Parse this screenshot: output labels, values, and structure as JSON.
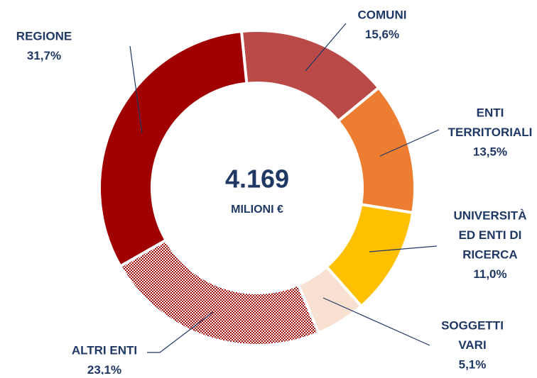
{
  "chart_data": {
    "type": "donut",
    "center_text": "4.169",
    "center_subtext": "MILIONI €",
    "categories": [
      [
        "COMUNI"
      ],
      [
        "ENTI",
        "TERRITORIALI"
      ],
      [
        "UNIVERSITÀ",
        "ED ENTI DI",
        "RICERCA"
      ],
      [
        "SOGGETTI",
        "VARI"
      ],
      [
        "ALTRI ENTI"
      ],
      [
        "REGIONE"
      ]
    ],
    "values": [
      15.6,
      13.5,
      11.0,
      5.1,
      23.1,
      31.7
    ],
    "value_labels": [
      "15,6%",
      "13,5%",
      "11,0%",
      "5,1%",
      "23,1%",
      "31,7%"
    ],
    "colors": [
      "#b94a48",
      "#ed7d31",
      "#ffc000",
      "#f9e1d2",
      "hatch",
      "#a00000"
    ]
  }
}
